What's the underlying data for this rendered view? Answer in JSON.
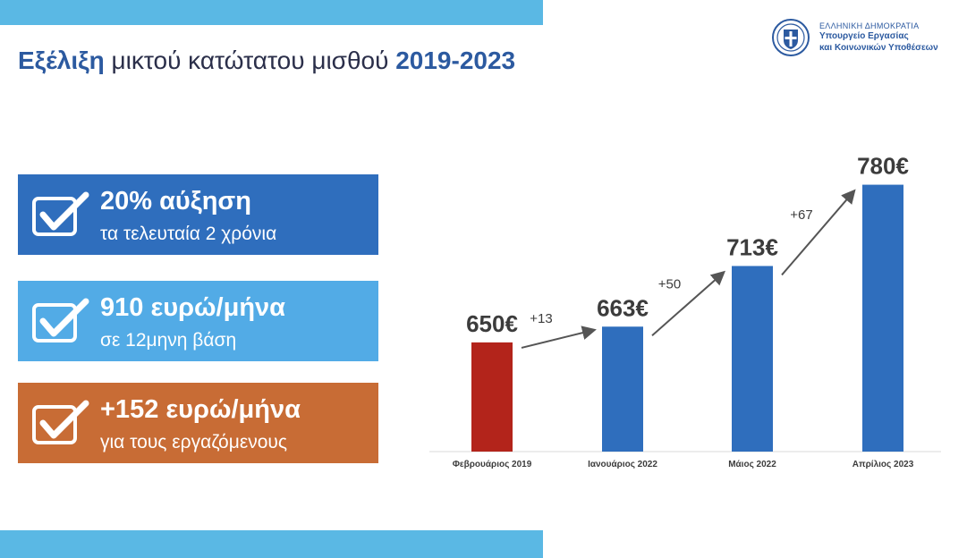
{
  "header": {
    "title_part1": "Εξέλιξη",
    "title_part2": " μικτού κατώτατου μισθού ",
    "title_part3": "2019-2023"
  },
  "logo": {
    "line1": "ΕΛΛΗΝΙΚΗ ΔΗΜΟΚΡΑΤΙΑ",
    "line2": "Υπουργείο Εργασίας",
    "line3": "και Κοινωνικών Υποθέσεων"
  },
  "stats": [
    {
      "main": "20% αύξηση",
      "sub": "τα τελευταία 2 χρόνια",
      "color": "#2f6ebd",
      "icon": "checkbox-check-icon"
    },
    {
      "main": "910 ευρώ/μήνα",
      "sub": "σε 12μηνη βάση",
      "color": "#52abe6",
      "icon": "checkbox-check-icon"
    },
    {
      "main": "+152 ευρώ/μήνα",
      "sub": "για τους εργαζόμενους",
      "color": "#c86c35",
      "icon": "checkbox-check-icon"
    }
  ],
  "colors": {
    "accent_blue": "#2c5aa0",
    "bar_red": "#b3241b",
    "bar_blue": "#2f6ebd",
    "stripe": "#5ab8e4"
  },
  "chart_data": {
    "type": "bar",
    "categories": [
      "Φεβρουάριος 2019",
      "Ιανουάριος 2022",
      "Μάιος 2022",
      "Απρίλιος 2023"
    ],
    "values": [
      650,
      663,
      713,
      780
    ],
    "value_labels": [
      "650€",
      "663€",
      "713€",
      "780€"
    ],
    "bar_colors": [
      "#b3241b",
      "#2f6ebd",
      "#2f6ebd",
      "#2f6ebd"
    ],
    "increments": [
      "+13",
      "+50",
      "+67"
    ],
    "ylim": [
      560,
      790
    ],
    "grid": false,
    "title": "",
    "xlabel": "",
    "ylabel": ""
  }
}
